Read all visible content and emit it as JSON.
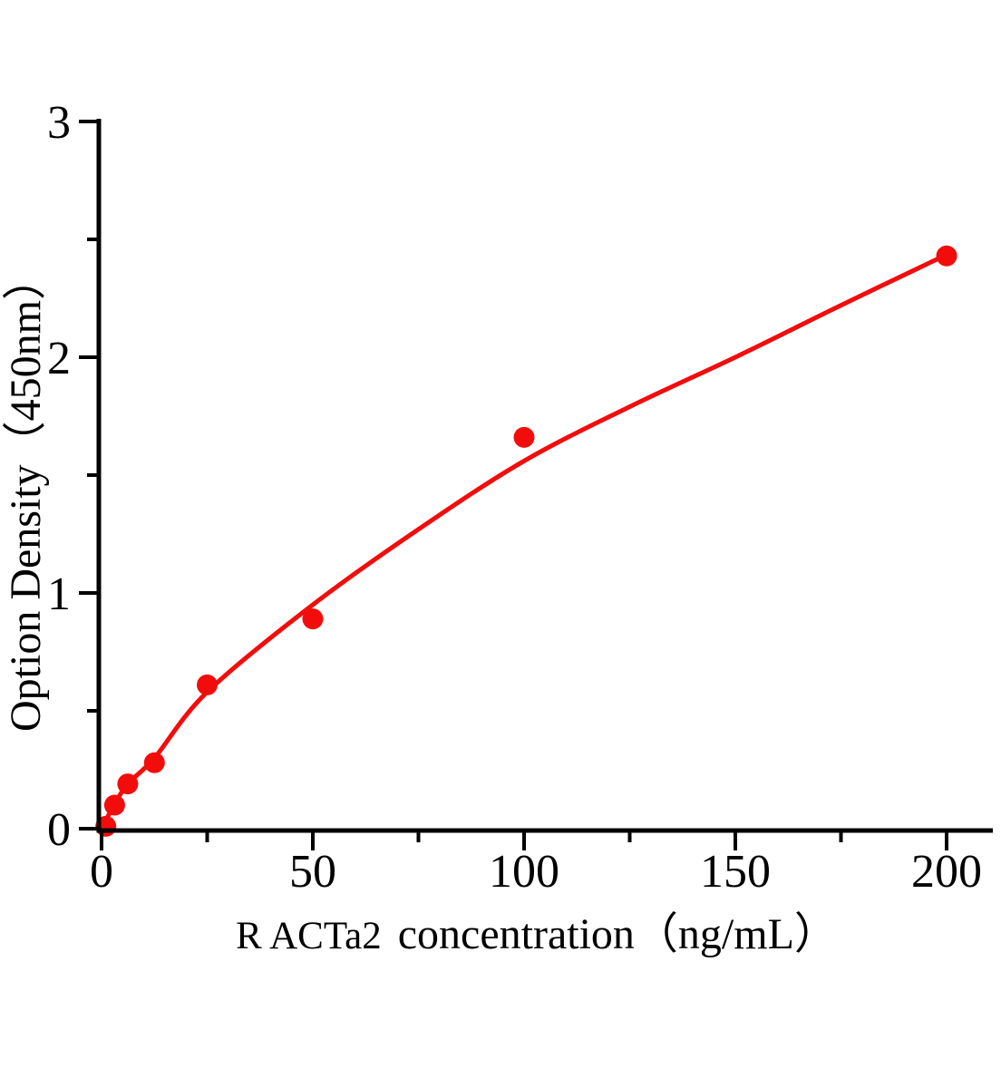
{
  "chart_data": {
    "type": "scatter",
    "title": "",
    "xlabel_prefix": "R ACTa2",
    "xlabel_main": "concentration（ng/mL）",
    "xlabel_full": "R ACTa2  concentration（ng/mL）",
    "ylabel": "Option Density（450nm）",
    "xlim": [
      0,
      211
    ],
    "ylim": [
      0,
      3.02
    ],
    "x_axis_max_tick": 200,
    "y_axis_max_tick": 3,
    "x_ticks": [
      0,
      50,
      100,
      150,
      200
    ],
    "x_tick_labels": [
      "0",
      "50",
      "100",
      "150",
      "200"
    ],
    "x_minor_ticks": [
      25,
      75,
      125,
      175
    ],
    "y_ticks": [
      0,
      1,
      2,
      3
    ],
    "y_tick_labels": [
      "0",
      "1",
      "2",
      "3"
    ],
    "y_minor_ticks": [
      0.5,
      1.5,
      2.5
    ],
    "grid": false,
    "legend": "none",
    "points": [
      {
        "x": 1,
        "od": 0.01,
        "note": "clipped at origin"
      },
      {
        "x": 3.1,
        "od": 0.1
      },
      {
        "x": 6.2,
        "od": 0.19
      },
      {
        "x": 12.5,
        "od": 0.28
      },
      {
        "x": 25,
        "od": 0.61
      },
      {
        "x": 50,
        "od": 0.89
      },
      {
        "x": 100,
        "od": 1.66
      },
      {
        "x": 200,
        "od": 2.43
      }
    ],
    "fit_curve_points": [
      {
        "x": 0,
        "od": 0.0
      },
      {
        "x": 3.1,
        "od": 0.105
      },
      {
        "x": 6.2,
        "od": 0.19
      },
      {
        "x": 12.5,
        "od": 0.3
      },
      {
        "x": 25,
        "od": 0.58
      },
      {
        "x": 50,
        "od": 0.95
      },
      {
        "x": 75,
        "od": 1.27
      },
      {
        "x": 100,
        "od": 1.56
      },
      {
        "x": 125,
        "od": 1.79
      },
      {
        "x": 150,
        "od": 2.0
      },
      {
        "x": 175,
        "od": 2.22
      },
      {
        "x": 200,
        "od": 2.435
      }
    ],
    "colors": {
      "curve": "#f20d0c",
      "marker": "#f20d0c",
      "axis": "#000000",
      "background": "#ffffff"
    },
    "marker_radius": 11.5
  }
}
